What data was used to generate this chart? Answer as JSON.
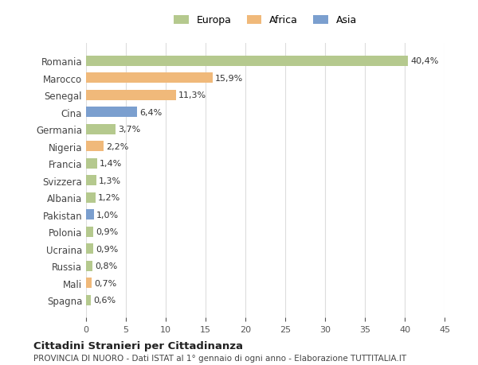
{
  "categories": [
    "Romania",
    "Marocco",
    "Senegal",
    "Cina",
    "Germania",
    "Nigeria",
    "Francia",
    "Svizzera",
    "Albania",
    "Pakistan",
    "Polonia",
    "Ucraina",
    "Russia",
    "Mali",
    "Spagna"
  ],
  "values": [
    40.4,
    15.9,
    11.3,
    6.4,
    3.7,
    2.2,
    1.4,
    1.3,
    1.2,
    1.0,
    0.9,
    0.9,
    0.8,
    0.7,
    0.6
  ],
  "labels": [
    "40,4%",
    "15,9%",
    "11,3%",
    "6,4%",
    "3,7%",
    "2,2%",
    "1,4%",
    "1,3%",
    "1,2%",
    "1,0%",
    "0,9%",
    "0,9%",
    "0,8%",
    "0,7%",
    "0,6%"
  ],
  "colors": [
    "#b5c98e",
    "#f0b97a",
    "#f0b97a",
    "#7b9fcf",
    "#b5c98e",
    "#f0b97a",
    "#b5c98e",
    "#b5c98e",
    "#b5c98e",
    "#7b9fcf",
    "#b5c98e",
    "#b5c98e",
    "#b5c98e",
    "#f0b97a",
    "#b5c98e"
  ],
  "legend": [
    {
      "label": "Europa",
      "color": "#b5c98e"
    },
    {
      "label": "Africa",
      "color": "#f0b97a"
    },
    {
      "label": "Asia",
      "color": "#7b9fcf"
    }
  ],
  "xlim": [
    0,
    45
  ],
  "xticks": [
    0,
    5,
    10,
    15,
    20,
    25,
    30,
    35,
    40,
    45
  ],
  "title": "Cittadini Stranieri per Cittadinanza",
  "subtitle": "PROVINCIA DI NUORO - Dati ISTAT al 1° gennaio di ogni anno - Elaborazione TUTTITALIA.IT",
  "bg_color": "#ffffff",
  "grid_color": "#dddddd"
}
